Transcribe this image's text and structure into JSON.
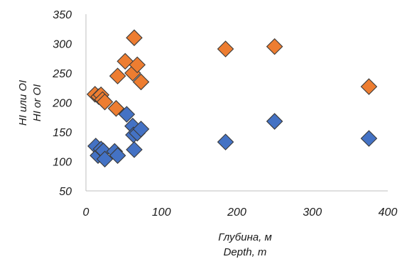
{
  "chart_data": {
    "type": "scatter",
    "xlabel": [
      "Глубина, м",
      "Depth, m"
    ],
    "ylabel": [
      "HI или OI",
      "HI or OI"
    ],
    "xlim": [
      0,
      400
    ],
    "ylim": [
      50,
      350
    ],
    "xticks": [
      0,
      100,
      200,
      300,
      400
    ],
    "yticks": [
      50,
      100,
      150,
      200,
      250,
      300,
      350
    ],
    "grid": false,
    "legend": "none",
    "series": [
      {
        "color": "#4472C4",
        "marker": "diamond",
        "x": [
          13,
          16,
          20,
          23,
          25,
          38,
          42,
          54,
          62,
          63,
          64,
          68,
          73,
          185,
          250,
          375
        ],
        "y": [
          126,
          110,
          121,
          118,
          104,
          117,
          110,
          180,
          160,
          145,
          120,
          148,
          155,
          133,
          168,
          139
        ]
      },
      {
        "color": "#ED7D31",
        "marker": "diamond",
        "x": [
          12,
          17,
          20,
          22,
          25,
          40,
          42,
          52,
          62,
          64,
          68,
          73,
          185,
          250,
          375
        ],
        "y": [
          214,
          210,
          213,
          205,
          201,
          190,
          245,
          270,
          250,
          310,
          264,
          235,
          291,
          295,
          227
        ]
      }
    ]
  }
}
